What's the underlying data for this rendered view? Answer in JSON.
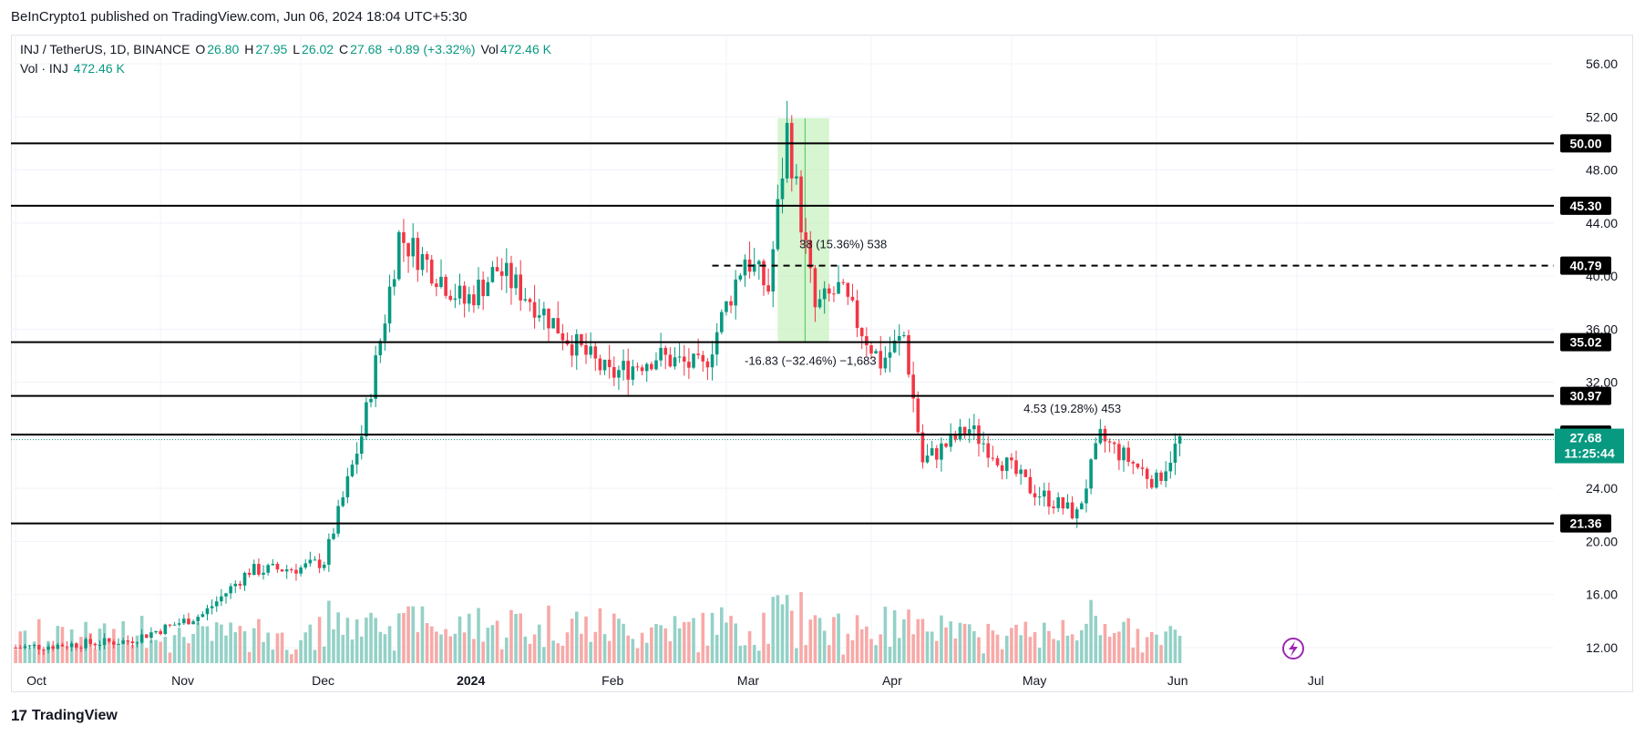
{
  "header": {
    "publisher_line": "BeInCrypto1 published on TradingView.com, Jun 06, 2024 18:04 UTC+5:30"
  },
  "legend": {
    "symbol": "INJ / TetherUS, 1D, BINANCE",
    "open_label": "O",
    "open": "26.80",
    "high_label": "H",
    "high": "27.95",
    "low_label": "L",
    "low": "26.02",
    "close_label": "C",
    "close": "27.68",
    "change": "+0.89 (+3.32%)",
    "vol_label": "Vol",
    "vol": "472.46 K",
    "vol_series": "Vol · INJ",
    "vol_series_value": "472.46 K"
  },
  "footer": {
    "brand": "TradingView",
    "logo_text": "17"
  },
  "colors": {
    "up": "#089981",
    "down": "#f23645",
    "up_vol": "#94d1c7",
    "down_vol": "#f7a9a7",
    "range_fill": "#c8f2c0",
    "range_stroke": "#49c95a"
  },
  "chart_data": {
    "type": "candlestick",
    "symbol": "INJ / TetherUS",
    "interval": "1D",
    "y_ticks": [
      12,
      16,
      20,
      24,
      28,
      32,
      36,
      40,
      44,
      48,
      52,
      56
    ],
    "ylim": [
      11,
      57
    ],
    "x_months": [
      {
        "label": "Oct",
        "date": "2023-10-01"
      },
      {
        "label": "Nov",
        "date": "2023-11-01"
      },
      {
        "label": "Dec",
        "date": "2023-12-01"
      },
      {
        "label": "2024",
        "date": "2024-01-01",
        "bold": true
      },
      {
        "label": "Feb",
        "date": "2024-02-01"
      },
      {
        "label": "Mar",
        "date": "2024-03-01"
      },
      {
        "label": "Apr",
        "date": "2024-04-01"
      },
      {
        "label": "May",
        "date": "2024-05-01"
      },
      {
        "label": "Jun",
        "date": "2024-06-01"
      },
      {
        "label": "Jul",
        "date": "2024-07-01"
      }
    ],
    "xlim": [
      "2023-09-30",
      "2024-08-25"
    ],
    "price_levels": [
      {
        "value": 50.0,
        "label": "50.00",
        "style": "solid"
      },
      {
        "value": 45.3,
        "label": "45.30",
        "style": "solid"
      },
      {
        "value": 40.79,
        "label": "40.79",
        "style": "dashed",
        "from_date": "2024-02-27"
      },
      {
        "value": 35.02,
        "label": "35.02",
        "style": "solid"
      },
      {
        "value": 30.97,
        "label": "30.97",
        "style": "solid"
      },
      {
        "value": 28.05,
        "label": "28.05",
        "style": "solid"
      },
      {
        "value": 21.36,
        "label": "21.36",
        "style": "solid"
      }
    ],
    "last_price": {
      "value": 27.68,
      "label": "27.68",
      "countdown": "11:25:44"
    },
    "annotations": [
      {
        "text": "-16.83 (−32.46%) −1,683",
        "date": "2024-03-19",
        "price": 33.3
      },
      {
        "text": "38 (15.36%) 538",
        "date": "2024-03-26",
        "price": 42.1
      },
      {
        "text": "4.53 (19.28%) 453",
        "date": "2024-05-14",
        "price": 29.7
      }
    ],
    "range_box": {
      "from": "2024-03-12",
      "to": "2024-03-23",
      "top": 51.9,
      "bottom": 35.0
    },
    "anchor_points": [
      {
        "date": "2023-10-01",
        "price": 12.0
      },
      {
        "date": "2023-10-25",
        "price": 12.5
      },
      {
        "date": "2023-11-10",
        "price": 14.5
      },
      {
        "date": "2023-11-20",
        "price": 17.8
      },
      {
        "date": "2023-12-01",
        "price": 18.0
      },
      {
        "date": "2023-12-06",
        "price": 18.5
      },
      {
        "date": "2023-12-14",
        "price": 28.0
      },
      {
        "date": "2023-12-19",
        "price": 37.0
      },
      {
        "date": "2023-12-22",
        "price": 43.0
      },
      {
        "date": "2023-12-28",
        "price": 41.0
      },
      {
        "date": "2024-01-05",
        "price": 38.0
      },
      {
        "date": "2024-01-12",
        "price": 40.5
      },
      {
        "date": "2024-01-20",
        "price": 38.0
      },
      {
        "date": "2024-01-28",
        "price": 35.0
      },
      {
        "date": "2024-02-05",
        "price": 32.5
      },
      {
        "date": "2024-02-15",
        "price": 34.0
      },
      {
        "date": "2024-02-25",
        "price": 33.0
      },
      {
        "date": "2024-03-05",
        "price": 41.5
      },
      {
        "date": "2024-03-10",
        "price": 39.0
      },
      {
        "date": "2024-03-14",
        "price": 51.0
      },
      {
        "date": "2024-03-20",
        "price": 37.5
      },
      {
        "date": "2024-03-25",
        "price": 39.0
      },
      {
        "date": "2024-04-03",
        "price": 33.5
      },
      {
        "date": "2024-04-08",
        "price": 35.5
      },
      {
        "date": "2024-04-12",
        "price": 26.0
      },
      {
        "date": "2024-04-22",
        "price": 28.5
      },
      {
        "date": "2024-05-05",
        "price": 24.0
      },
      {
        "date": "2024-05-15",
        "price": 22.0
      },
      {
        "date": "2024-05-20",
        "price": 27.8
      },
      {
        "date": "2024-06-01",
        "price": 24.5
      },
      {
        "date": "2024-06-06",
        "price": 27.68
      }
    ]
  }
}
